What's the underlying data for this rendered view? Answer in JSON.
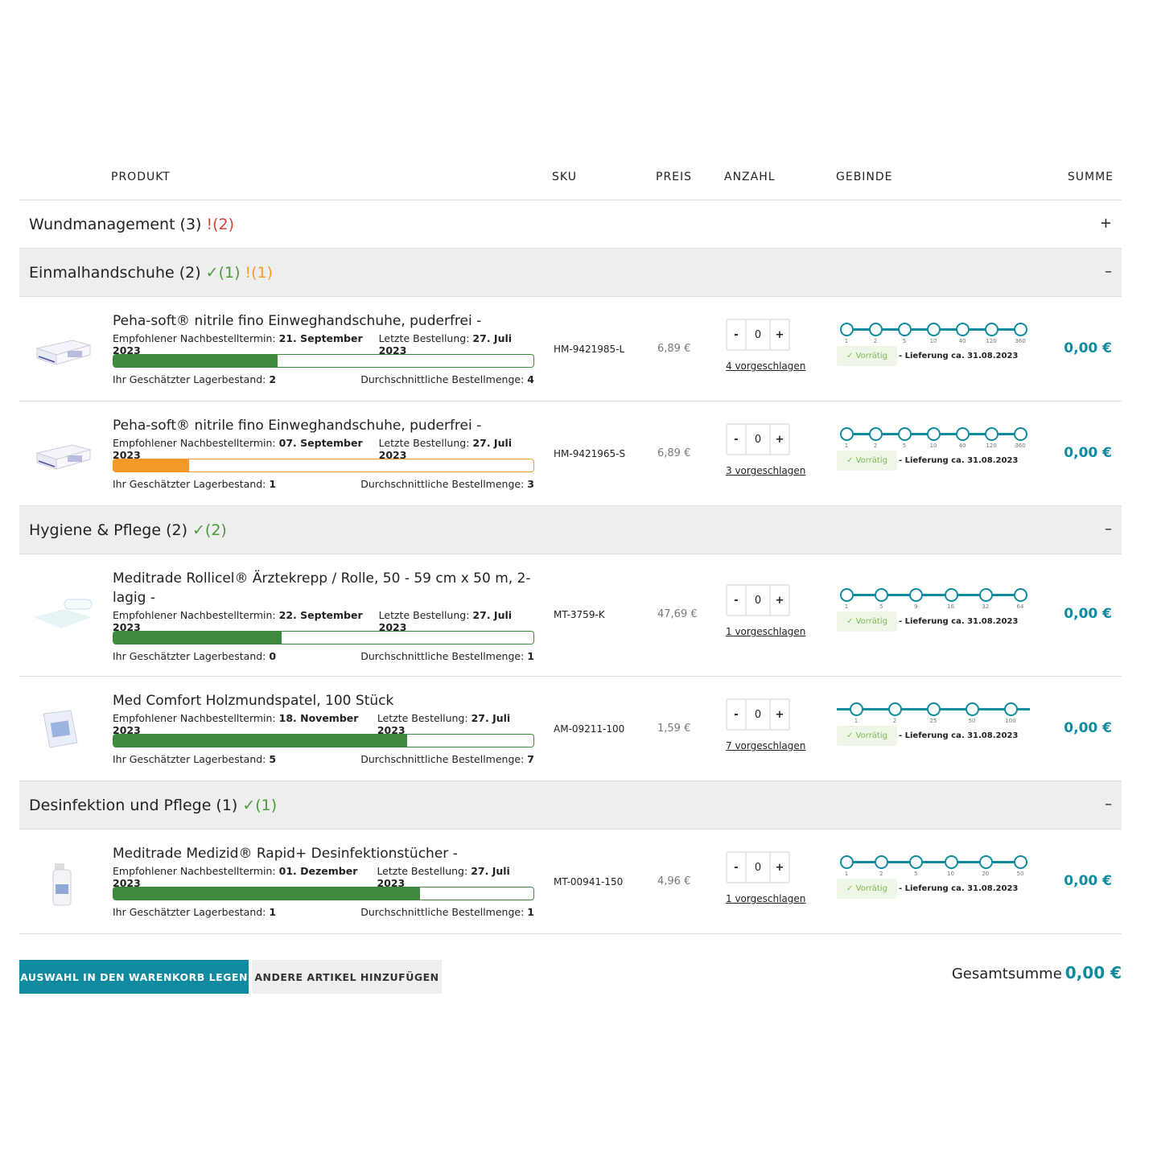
{
  "colors": {
    "accent": "#0f8a9f",
    "ok": "#4a9a3a",
    "warn_red": "#d9403a",
    "warn_orange": "#f59a2a",
    "bar_green": "#3d8a3f"
  },
  "header": {
    "produkt": "PRODUKT",
    "sku": "SKU",
    "preis": "PREIS",
    "anzahl": "ANZAHL",
    "gebinde": "GEBINDE",
    "summe": "SUMME"
  },
  "labels": {
    "recommended": "Empfohlener Nachbestelltermin:",
    "last_order": "Letzte Bestellung:",
    "stock": "Ihr Geschätzter Lagerbestand:",
    "avg": "Durchschnittliche Bestellmenge:",
    "in_stock": "Vorrätig",
    "minus": "-",
    "plus": "+"
  },
  "categories": [
    {
      "name": "Wundmanagement",
      "count": "(3)",
      "ok": "",
      "warn": "!(2)",
      "warn_color": "#d9403a",
      "open": false,
      "toggle": "+",
      "products": []
    },
    {
      "name": "Einmalhandschuhe",
      "count": "(2)",
      "ok": "(1)",
      "warn": "!(1)",
      "warn_color": "#f59a2a",
      "open": true,
      "toggle": "–",
      "products": [
        {
          "name": "Peha-soft® nitrile fino Einweghandschuhe, puderfrei -",
          "recommended": "21. September 2023",
          "last": "27. Juli 2023",
          "stock": "2",
          "avg": "4",
          "fill": 0.39,
          "bar": "green",
          "sku": "HM-9421985-L",
          "price": "6,89 €",
          "qty": "0",
          "suggested": "4 vorgeschlagen",
          "packs": [
            "1",
            "2",
            "5",
            "10",
            "40",
            "120",
            "360"
          ],
          "delivery": "- Lieferung ca. 31.08.2023",
          "sum": "0,00 €",
          "image": "glove-box"
        },
        {
          "name": "Peha-soft® nitrile fino Einweghandschuhe, puderfrei -",
          "recommended": "07. September 2023",
          "last": "27. Juli 2023",
          "stock": "1",
          "avg": "3",
          "fill": 0.18,
          "bar": "orange",
          "sku": "HM-9421965-S",
          "price": "6,89 €",
          "qty": "0",
          "suggested": "3 vorgeschlagen",
          "packs": [
            "1",
            "2",
            "5",
            "10",
            "40",
            "120",
            "360"
          ],
          "delivery": "- Lieferung ca. 31.08.2023",
          "sum": "0,00 €",
          "image": "glove-box"
        }
      ]
    },
    {
      "name": "Hygiene & Pflege",
      "count": "(2)",
      "ok": "(2)",
      "warn": "",
      "open": true,
      "toggle": "–",
      "products": [
        {
          "name": "Meditrade Rollicel® Ärztekrepp / Rolle, 50 - 59 cm x 50 m, 2-lagig -",
          "recommended": "22. September 2023",
          "last": "27. Juli 2023",
          "stock": "0",
          "avg": "1",
          "fill": 0.4,
          "bar": "green",
          "sku": "MT-3759-K",
          "price": "47,69 €",
          "qty": "0",
          "suggested": "1 vorgeschlagen",
          "packs": [
            "1",
            "5",
            "9",
            "16",
            "32",
            "64"
          ],
          "delivery": "- Lieferung ca. 31.08.2023",
          "sum": "0,00 €",
          "image": "paper-roll",
          "tall": true
        },
        {
          "name": "Med Comfort Holzmundspatel, 100 Stück",
          "recommended": "18. November 2023",
          "last": "27. Juli 2023",
          "stock": "5",
          "avg": "7",
          "fill": 0.7,
          "bar": "green",
          "sku": "AM-09211-100",
          "price": "1,59 €",
          "qty": "0",
          "suggested": "7 vorgeschlagen",
          "packs": [
            "1",
            "2",
            "25",
            "50",
            "100"
          ],
          "delivery": "- Lieferung ca. 31.08.2023",
          "sum": "0,00 €",
          "image": "spatula-bag",
          "extended": true
        }
      ]
    },
    {
      "name": "Desinfektion und Pflege",
      "count": "(1)",
      "ok": "(1)",
      "warn": "",
      "open": true,
      "toggle": "–",
      "products": [
        {
          "name": "Meditrade Medizid® Rapid+ Desinfektionstücher -",
          "recommended": "01. Dezember 2023",
          "last": "27. Juli 2023",
          "stock": "1",
          "avg": "1",
          "fill": 0.73,
          "bar": "green",
          "sku": "MT-00941-150",
          "price": "4,96 €",
          "qty": "0",
          "suggested": "1 vorgeschlagen",
          "packs": [
            "1",
            "2",
            "5",
            "10",
            "20",
            "50"
          ],
          "delivery": "- Lieferung ca. 31.08.2023",
          "sum": "0,00 €",
          "image": "disinfect-bottle"
        }
      ]
    }
  ],
  "footer": {
    "add_to_cart": "AUSWAHL IN DEN WARENKORB LEGEN",
    "add_other": "ANDERE ARTIKEL HINZUFÜGEN",
    "total_label": "Gesamtsumme",
    "total": "0,00 €"
  }
}
